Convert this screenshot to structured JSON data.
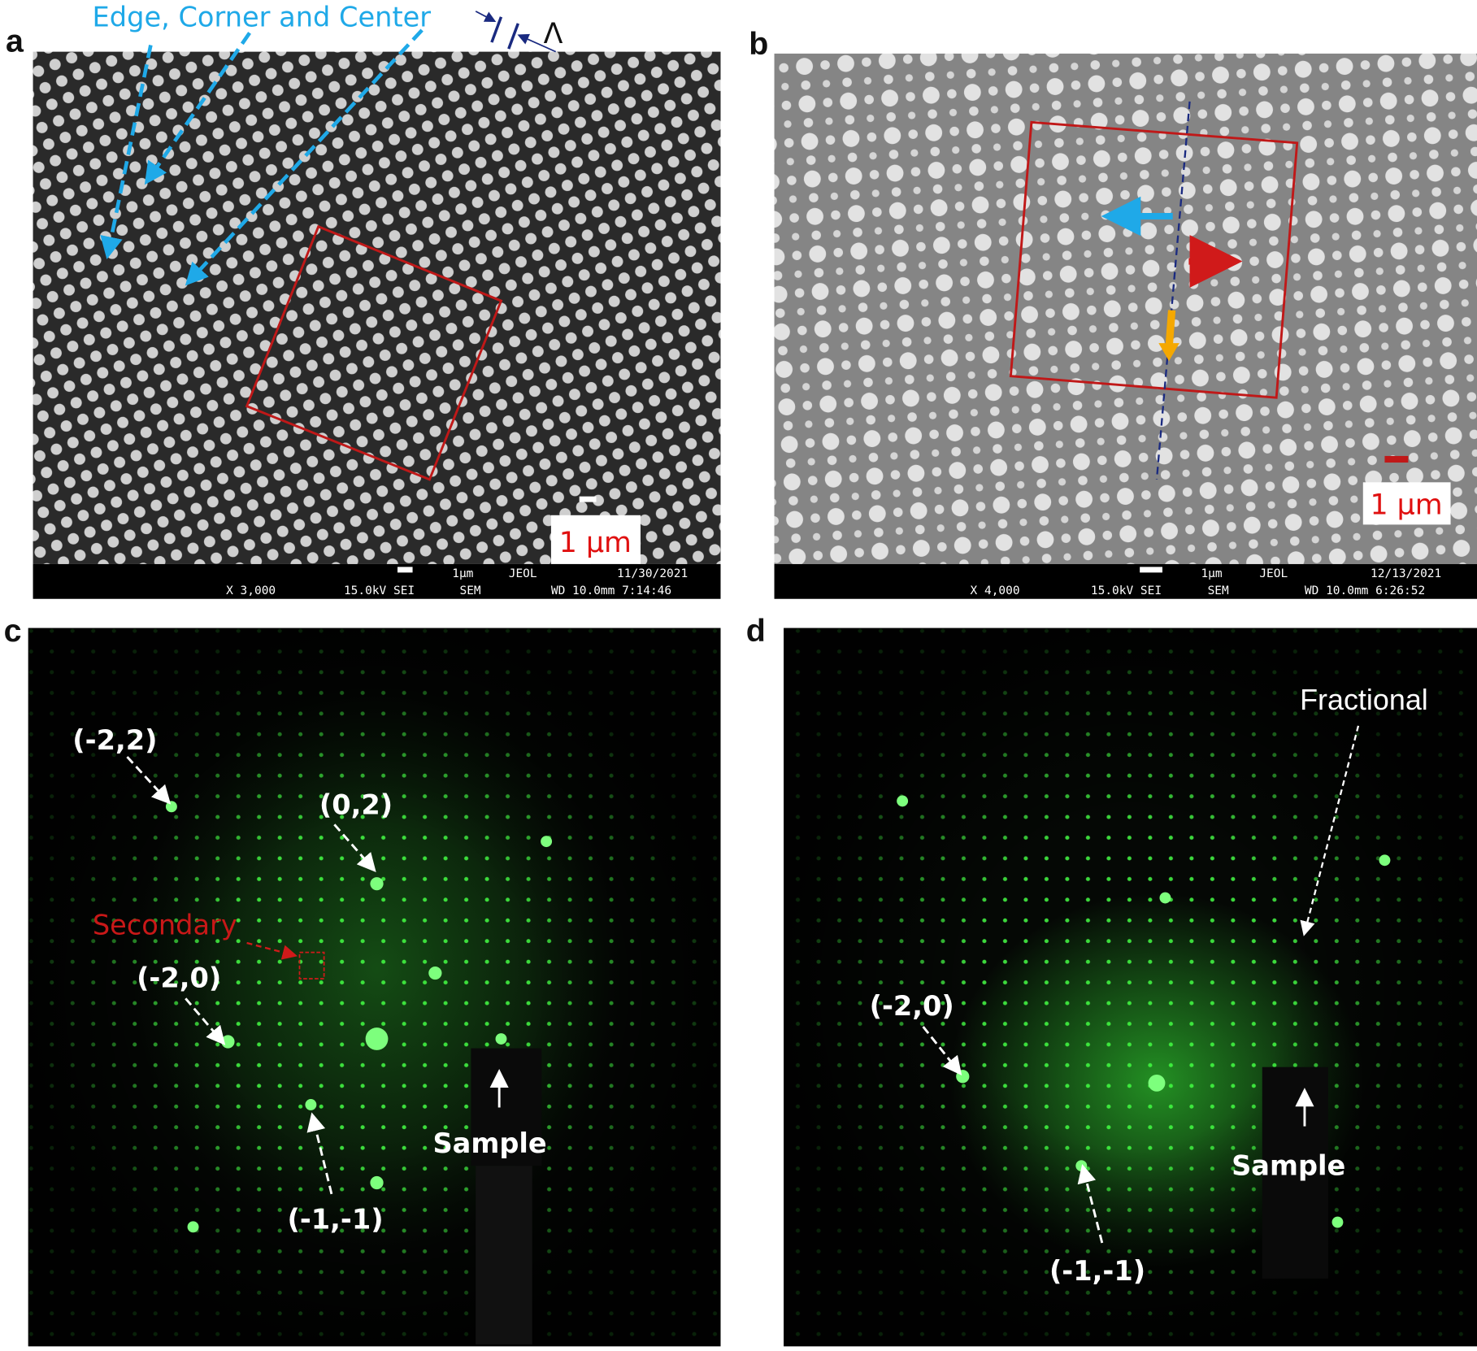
{
  "panels": [
    {
      "label": "a",
      "annotation": "Edge, Corner  and Center",
      "symbol": "Λ",
      "scale_label": "1 μm",
      "info_bar": {
        "top": [
          "1μm",
          "JEOL",
          "11/30/2021"
        ],
        "bottom": [
          "X 3,000",
          "15.0kV SEI",
          "SEM",
          "WD 10.0mm 7:14:46"
        ]
      }
    },
    {
      "label": "b",
      "scale_label": "1 μm",
      "info_bar": {
        "top": [
          "1μm",
          "JEOL",
          "12/13/2021"
        ],
        "bottom": [
          "X 4,000",
          "15.0kV SEI",
          "SEM",
          "WD 10.0mm 6:26:52"
        ]
      }
    },
    {
      "label": "c",
      "annotations": [
        "(-2,2)",
        "(0,2)",
        "Secondary",
        "(-2,0)",
        "(-1,-1)",
        "Sample"
      ]
    },
    {
      "label": "d",
      "annotations": [
        "Fractional",
        "(-2,0)",
        "(-1,-1)",
        "Sample"
      ]
    }
  ]
}
